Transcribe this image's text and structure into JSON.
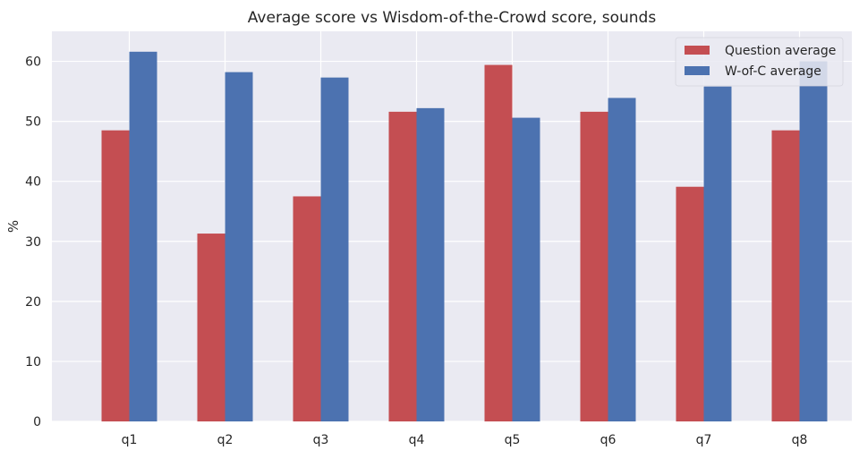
{
  "chart_data": {
    "type": "bar",
    "title": "Average score vs Wisdom-of-the-Crowd score, sounds",
    "xlabel": "",
    "ylabel": "%",
    "ylim": [
      0,
      65
    ],
    "yticks": [
      0,
      10,
      20,
      30,
      40,
      50,
      60
    ],
    "categories": [
      "q1",
      "q2",
      "q3",
      "q4",
      "q5",
      "q6",
      "q7",
      "q8"
    ],
    "series": [
      {
        "name": "Question average",
        "color": "#c44e52",
        "values": [
          48.5,
          31.3,
          37.5,
          51.6,
          59.4,
          51.6,
          39.1,
          48.5
        ]
      },
      {
        "name": "W-of-C average",
        "color": "#4c72b0",
        "values": [
          61.6,
          58.2,
          57.3,
          52.2,
          50.6,
          53.9,
          55.8,
          60.0
        ]
      }
    ],
    "grid": true,
    "legend": "top-right",
    "background": "#eaeaf2"
  }
}
